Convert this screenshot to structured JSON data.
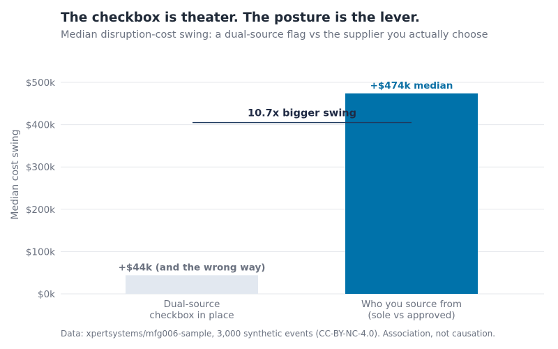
{
  "title": "The checkbox is theater. The posture is the lever.",
  "subtitle": "Median disruption-cost swing: a dual-source flag vs the supplier you actually choose",
  "footnote": "Data: xpertsystems/mfg006-sample, 3,000 synthetic events (CC-BY-NC-4.0). Association, not causation.",
  "chart_data": {
    "type": "bar",
    "ylabel": "Median cost swing",
    "ylim": [
      0,
      500000
    ],
    "yticks": [
      0,
      100000,
      200000,
      300000,
      400000,
      500000
    ],
    "ytick_labels": [
      "$0k",
      "$100k",
      "$200k",
      "$300k",
      "$400k",
      "$500k"
    ],
    "grid": true,
    "categories": [
      [
        "Dual-source",
        "checkbox in place"
      ],
      [
        "Who you source from",
        "(sole vs approved)"
      ]
    ],
    "values": [
      44000,
      474000
    ],
    "data_labels": [
      "+$44k  (and the wrong way)",
      "+$474k median"
    ],
    "annotation": {
      "text": "10.7x bigger swing",
      "y": 405000
    }
  },
  "colors": {
    "bar_1": "#e2e8f0",
    "bar_2": "#0072aa",
    "label_1": "#6b7280",
    "label_2": "#0b6fa4",
    "annotation_line": "#1f3a5f",
    "grid": "#e5e7eb"
  }
}
